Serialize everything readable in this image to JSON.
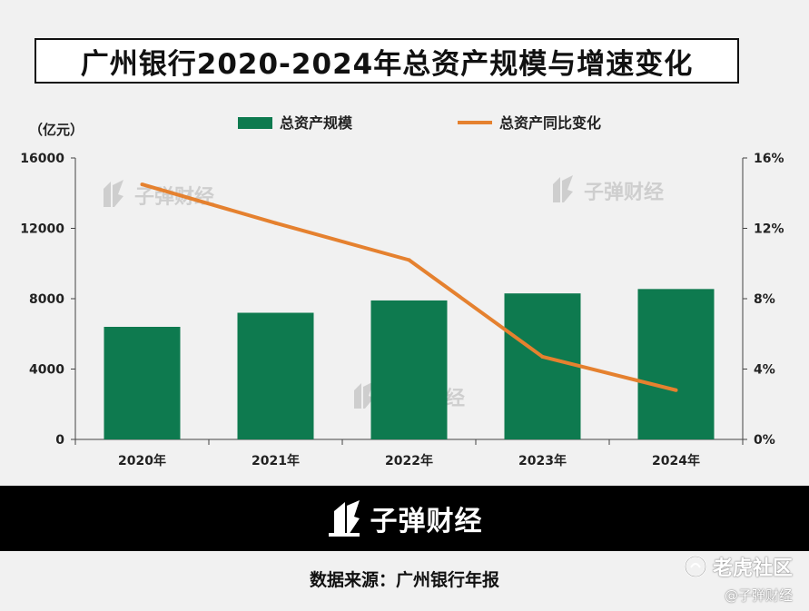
{
  "title": "广州银行2020-2024年总资产规模与增速变化",
  "unit_label": "（亿元）",
  "watermark": "子弹财经",
  "footer": {
    "brand": "子弹财经"
  },
  "source": "数据来源：广州银行年报",
  "platform": {
    "name": "老虎社区",
    "sub": "@子弹财经"
  },
  "colors": {
    "bar": "#0e7a4f",
    "line": "#e5812f",
    "title_border": "#111111",
    "footer_bg": "#000000"
  },
  "chart_data": {
    "type": "bar",
    "categories": [
      "2020年",
      "2021年",
      "2022年",
      "2023年",
      "2024年"
    ],
    "series": [
      {
        "name": "总资产规模",
        "type": "bar",
        "axis": "left",
        "values": [
          6400,
          7200,
          7900,
          8300,
          8550
        ]
      },
      {
        "name": "总资产同比变化",
        "type": "line",
        "axis": "right",
        "values": [
          14.5,
          12.3,
          10.2,
          4.7,
          2.8
        ]
      }
    ],
    "y_left": {
      "min": 0,
      "max": 16000,
      "ticks": [
        0,
        4000,
        8000,
        12000,
        16000
      ]
    },
    "y_right": {
      "min": 0,
      "max": 16,
      "ticks": [
        "0%",
        "4%",
        "8%",
        "12%",
        "16%"
      ]
    },
    "legend_position": "top",
    "grid": false
  }
}
